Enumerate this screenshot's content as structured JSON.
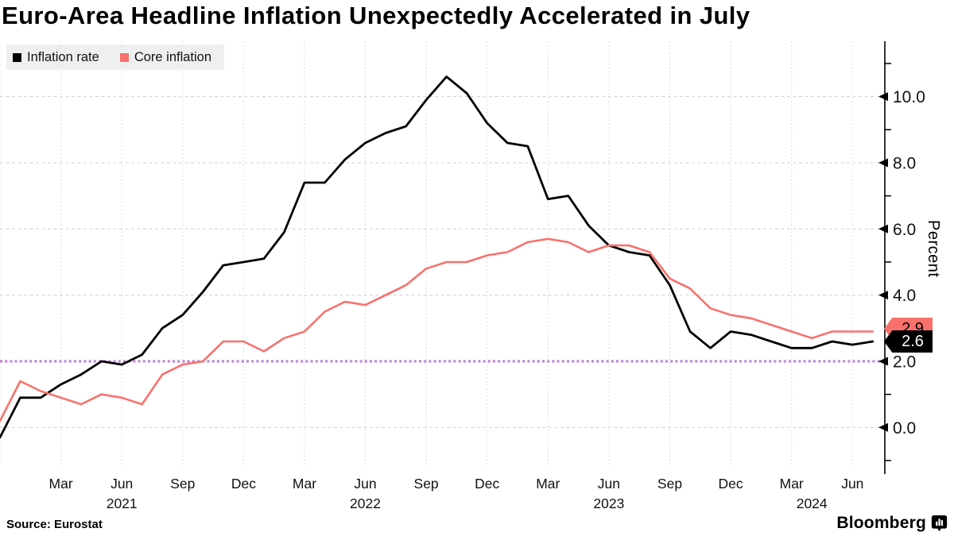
{
  "title": "Euro-Area Headline Inflation Unexpectedly Accelerated in July",
  "legend": {
    "items": [
      {
        "label": "Inflation rate",
        "color": "#000000"
      },
      {
        "label": "Core inflation",
        "color": "#F8716C"
      }
    ]
  },
  "y_axis": {
    "label": "Percent",
    "tick_labels": [
      "0.0",
      "2.0",
      "4.0",
      "6.0",
      "8.0",
      "10.0"
    ],
    "tick_values": [
      0,
      2,
      4,
      6,
      8,
      10
    ],
    "minor_tick_values": [
      -1,
      1,
      3,
      5,
      7,
      9,
      11
    ],
    "gridline_values": [
      0,
      4,
      6,
      8,
      10
    ]
  },
  "x_axis": {
    "ticks": [
      {
        "label": "Mar",
        "month": "2021-03"
      },
      {
        "label": "Jun",
        "month": "2021-06"
      },
      {
        "label": "Sep",
        "month": "2021-09"
      },
      {
        "label": "Dec",
        "month": "2021-12"
      },
      {
        "label": "Mar",
        "month": "2022-03"
      },
      {
        "label": "Jun",
        "month": "2022-06"
      },
      {
        "label": "Sep",
        "month": "2022-09"
      },
      {
        "label": "Dec",
        "month": "2022-12"
      },
      {
        "label": "Mar",
        "month": "2023-03"
      },
      {
        "label": "Jun",
        "month": "2023-06"
      },
      {
        "label": "Sep",
        "month": "2023-09"
      },
      {
        "label": "Dec",
        "month": "2023-12"
      },
      {
        "label": "Mar",
        "month": "2024-03"
      },
      {
        "label": "Jun",
        "month": "2024-06"
      }
    ],
    "year_labels": [
      {
        "label": "2021",
        "month": "2021-06"
      },
      {
        "label": "2022",
        "month": "2022-06"
      },
      {
        "label": "2023",
        "month": "2023-06"
      },
      {
        "label": "2024",
        "month": "2024-04"
      }
    ]
  },
  "annotations": {
    "core_badge": {
      "value": "2.9",
      "bg": "#F8716C",
      "text": "#000000"
    },
    "headline_badge": {
      "value": "2.6",
      "bg": "#000000",
      "text": "#ffffff"
    },
    "target_line": {
      "value": 2.0,
      "color": "#BE7ADF"
    }
  },
  "footer": {
    "source": "Source: Eurostat",
    "brand": "Bloomberg"
  },
  "chart_data": {
    "type": "line",
    "title": "Euro-Area Headline Inflation Unexpectedly Accelerated in July",
    "ylabel": "Percent",
    "ylim": [
      -1.3,
      11.6
    ],
    "grid": "light dashed horizontal at 0/4/6/8/10, quarterly vertical dotted; purple dotted 2% target line",
    "legend_position": "top-left",
    "x": [
      "2020-12",
      "2021-01",
      "2021-02",
      "2021-03",
      "2021-04",
      "2021-05",
      "2021-06",
      "2021-07",
      "2021-08",
      "2021-09",
      "2021-10",
      "2021-11",
      "2021-12",
      "2022-01",
      "2022-02",
      "2022-03",
      "2022-04",
      "2022-05",
      "2022-06",
      "2022-07",
      "2022-08",
      "2022-09",
      "2022-10",
      "2022-11",
      "2022-12",
      "2023-01",
      "2023-02",
      "2023-03",
      "2023-04",
      "2023-05",
      "2023-06",
      "2023-07",
      "2023-08",
      "2023-09",
      "2023-10",
      "2023-11",
      "2023-12",
      "2024-01",
      "2024-02",
      "2024-03",
      "2024-04",
      "2024-05",
      "2024-06",
      "2024-07"
    ],
    "series": [
      {
        "name": "Inflation rate",
        "color": "#000000",
        "values": [
          -0.3,
          0.9,
          0.9,
          1.3,
          1.6,
          2.0,
          1.9,
          2.2,
          3.0,
          3.4,
          4.1,
          4.9,
          5.0,
          5.1,
          5.9,
          7.4,
          7.4,
          8.1,
          8.6,
          8.9,
          9.1,
          9.9,
          10.6,
          10.1,
          9.2,
          8.6,
          8.5,
          6.9,
          7.0,
          6.1,
          5.5,
          5.3,
          5.2,
          4.3,
          2.9,
          2.4,
          2.9,
          2.8,
          2.6,
          2.4,
          2.4,
          2.6,
          2.5,
          2.6
        ]
      },
      {
        "name": "Core inflation",
        "color": "#F8716C",
        "values": [
          0.2,
          1.4,
          1.1,
          0.9,
          0.7,
          1.0,
          0.9,
          0.7,
          1.6,
          1.9,
          2.0,
          2.6,
          2.6,
          2.3,
          2.7,
          2.9,
          3.5,
          3.8,
          3.7,
          4.0,
          4.3,
          4.8,
          5.0,
          5.0,
          5.2,
          5.3,
          5.6,
          5.7,
          5.6,
          5.3,
          5.5,
          5.5,
          5.3,
          4.5,
          4.2,
          3.6,
          3.4,
          3.3,
          3.1,
          2.9,
          2.7,
          2.9,
          2.9,
          2.9
        ]
      }
    ]
  }
}
